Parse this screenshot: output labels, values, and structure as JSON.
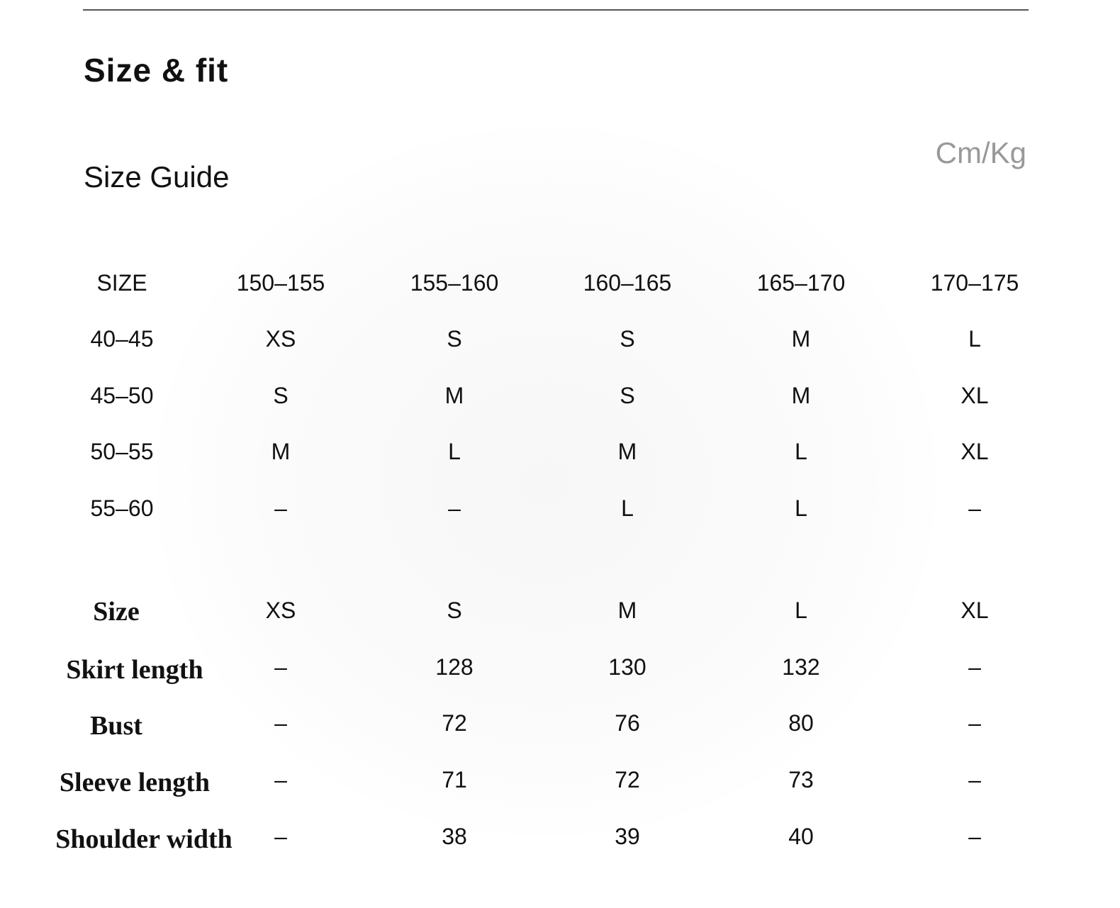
{
  "header": {
    "title": "Size & fit",
    "subtitle": "Size Guide",
    "unit": "Cm/Kg"
  },
  "size_guide": {
    "corner": "SIZE",
    "heights": [
      "150–155",
      "155–160",
      "160–165",
      "165–170",
      "170–175"
    ],
    "rows": [
      {
        "weight": "40–45",
        "values": [
          "XS",
          "S",
          "S",
          "M",
          "L"
        ]
      },
      {
        "weight": "45–50",
        "values": [
          "S",
          "M",
          "S",
          "M",
          "XL"
        ]
      },
      {
        "weight": "50–55",
        "values": [
          "M",
          "L",
          "M",
          "L",
          "XL"
        ]
      },
      {
        "weight": "55–60",
        "values": [
          "–",
          "–",
          "L",
          "L",
          "–"
        ]
      }
    ]
  },
  "measurements": {
    "corner": "Size",
    "sizes": [
      "XS",
      "S",
      "M",
      "L",
      "XL"
    ],
    "rows": [
      {
        "label": "Skirt length",
        "values": [
          "–",
          "128",
          "130",
          "132",
          "–"
        ]
      },
      {
        "label": "Bust",
        "values": [
          "–",
          "72",
          "76",
          "80",
          "–"
        ]
      },
      {
        "label": "Sleeve length",
        "values": [
          "–",
          "71",
          "72",
          "73",
          "–"
        ]
      },
      {
        "label": "Shoulder width",
        "values": [
          "–",
          "38",
          "39",
          "40",
          "–"
        ]
      }
    ]
  }
}
